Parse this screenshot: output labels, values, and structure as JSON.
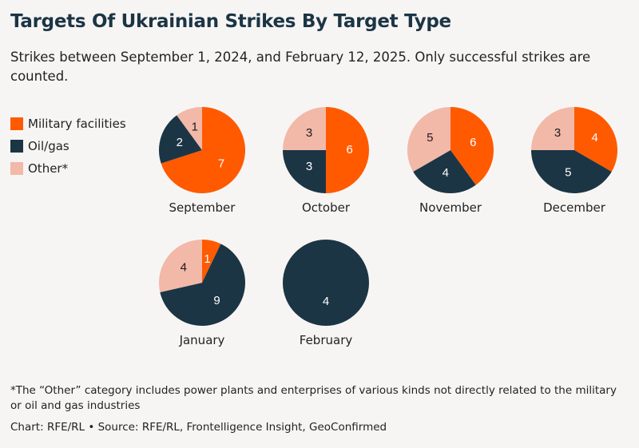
{
  "title": "Targets Of Ukrainian Strikes By Target Type",
  "subtitle": "Strikes between September 1, 2024, and February 12, 2025. Only successful strikes are counted.",
  "legend": [
    {
      "label": "Military facilities",
      "color": "#ff5a00"
    },
    {
      "label": "Oil/gas",
      "color": "#1b3545"
    },
    {
      "label": "Other*",
      "color": "#f2b8a8"
    }
  ],
  "footnote": "*The “Other” category includes power plants and enterprises of various kinds not directly related to the military or oil and gas industries",
  "credit": "Chart: RFE/RL • Source: RFE/RL, Frontelligence Insight, GeoConfirmed",
  "chart_data": {
    "type": "pie",
    "series_names": [
      "Military facilities",
      "Oil/gas",
      "Other*"
    ],
    "colors": [
      "#ff5a00",
      "#1b3545",
      "#f2b8a8"
    ],
    "pies": [
      {
        "label": "September",
        "values": [
          7,
          2,
          1
        ]
      },
      {
        "label": "October",
        "values": [
          6,
          3,
          3
        ]
      },
      {
        "label": "November",
        "values": [
          6,
          4,
          5
        ]
      },
      {
        "label": "December",
        "values": [
          4,
          5,
          3
        ]
      },
      {
        "label": "January",
        "values": [
          1,
          9,
          4
        ]
      },
      {
        "label": "February",
        "values": [
          0,
          4,
          0
        ]
      }
    ]
  }
}
